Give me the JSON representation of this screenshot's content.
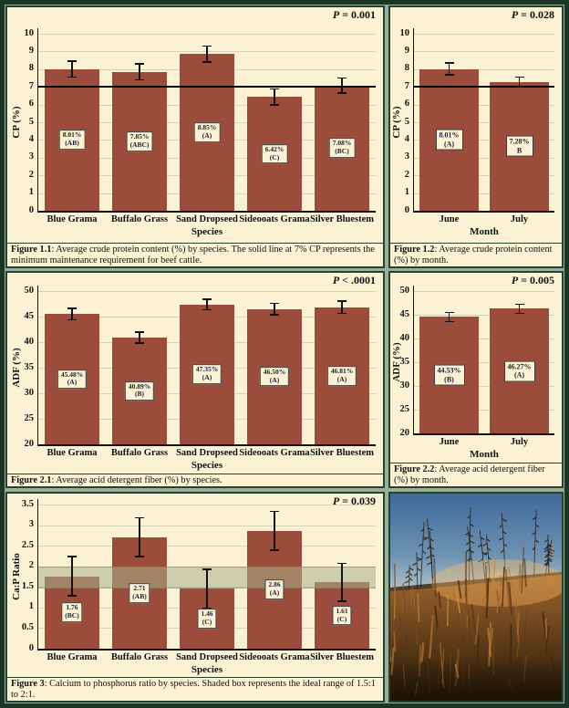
{
  "colors": {
    "frame": "#1B3526",
    "gap_background": "#9BAE98",
    "panel_border": "#26432F",
    "panel_background": "#FBF2D3",
    "bar": "#9B4C3B",
    "grid": "#D8D0BA",
    "axis": "#111111",
    "value_text": "#1C1C38",
    "ideal_band": "rgba(168,176,138,0.55)"
  },
  "chart_data": [
    {
      "id": "fig-1-1",
      "type": "bar",
      "p_italic": "P",
      "p_rest": " = 0.001",
      "ylabel": "CP (%)",
      "xlabel": "Species",
      "ylim": [
        0,
        10
      ],
      "ystep": 1,
      "categories": [
        "Blue Grama",
        "Buffalo Grass",
        "Sand Dropseed",
        "Sideooats Grama",
        "Silver Bluestem"
      ],
      "values": [
        8.01,
        7.85,
        8.85,
        6.42,
        7.08
      ],
      "errors": [
        0.45,
        0.45,
        0.45,
        0.45,
        0.42
      ],
      "bar_labels": [
        [
          "8.01%",
          "(AB)"
        ],
        [
          "7.85%",
          "(ABC)"
        ],
        [
          "8.85%",
          "(A)"
        ],
        [
          "6.42%",
          "(C)"
        ],
        [
          "7.08%",
          "(BC)"
        ]
      ],
      "ref_line": 7,
      "caption_label": "Figure 1.1",
      "caption_text": ": Average crude protein content (%) by species. The solid line at 7% CP represents the minimum maintenance requirement for beef cattle."
    },
    {
      "id": "fig-1-2",
      "type": "bar",
      "p_italic": "P",
      "p_rest": " = 0.028",
      "ylabel": "CP (%)",
      "xlabel": "Month",
      "ylim": [
        0,
        10
      ],
      "ystep": 1,
      "categories": [
        "June",
        "July"
      ],
      "values": [
        8.01,
        7.28
      ],
      "errors": [
        0.33,
        0.28
      ],
      "bar_labels": [
        [
          "8.01%",
          "(A)"
        ],
        [
          "7.28%",
          "B"
        ]
      ],
      "ref_line": 7,
      "caption_label": "Figure 1.2",
      "caption_text": ": Average crude protein content (%) by month."
    },
    {
      "id": "fig-2-1",
      "type": "bar",
      "p_italic": "P",
      "p_rest": " < .0001",
      "ylabel": "ADF (%)",
      "xlabel": "Species",
      "ylim": [
        20,
        50
      ],
      "ystep": 5,
      "categories": [
        "Blue Grama",
        "Buffalo Grass",
        "Sand Dropseed",
        "Sideooats Grama",
        "Silver Bluestem"
      ],
      "values": [
        45.48,
        40.89,
        47.35,
        46.5,
        46.81
      ],
      "errors": [
        1.1,
        1.1,
        1.05,
        1.1,
        1.2
      ],
      "bar_labels": [
        [
          "45.48%",
          "(A)"
        ],
        [
          "40.89%",
          "(B)"
        ],
        [
          "47.35%",
          "(A)"
        ],
        [
          "46.50%",
          "(A)"
        ],
        [
          "46.81%",
          "(A)"
        ]
      ],
      "caption_label": "Figure 2.1",
      "caption_text": ": Average acid detergent fiber (%) by species."
    },
    {
      "id": "fig-2-2",
      "type": "bar",
      "p_italic": "P",
      "p_rest": " = 0.005",
      "ylabel": "ADF (%)",
      "xlabel": "Month",
      "ylim": [
        20,
        50
      ],
      "ystep": 5,
      "categories": [
        "June",
        "July"
      ],
      "values": [
        44.53,
        46.27
      ],
      "errors": [
        0.95,
        0.95
      ],
      "bar_labels": [
        [
          "44.53%",
          "(B)"
        ],
        [
          "46.27%",
          "(A)"
        ]
      ],
      "caption_label": "Figure 2.2",
      "caption_text": ": Average acid detergent fiber (%) by month."
    },
    {
      "id": "fig-3",
      "type": "bar",
      "p_italic": "P",
      "p_rest": " = 0.039",
      "ylabel": "Ca:P Ratio",
      "xlabel": "Species",
      "ylim": [
        0,
        3.5
      ],
      "ystep": 0.5,
      "categories": [
        "Blue Grama",
        "Buffalo Grass",
        "Sand Dropseed",
        "Sideooats Grama",
        "Silver Bluestem"
      ],
      "values": [
        1.76,
        2.71,
        1.46,
        2.86,
        1.61
      ],
      "errors": [
        0.48,
        0.47,
        0.47,
        0.47,
        0.46
      ],
      "bar_labels": [
        [
          "1.76",
          "(BC)"
        ],
        [
          "2.71",
          "(AB)"
        ],
        [
          "1.46",
          "(C)"
        ],
        [
          "2.86",
          "(A)"
        ],
        [
          "1.61",
          "(C)"
        ]
      ],
      "band": [
        1.5,
        2.0
      ],
      "caption_label": "Figure 3",
      "caption_text": ": Calcium to phosphorus ratio by species. Shaded box represents the ideal range of 1.5:1 to 2:1."
    }
  ],
  "photo": {
    "alt": "Prairie grass seed heads backlit by a setting sun under a clear sky",
    "sky_top": "#3E699B",
    "horizon_glow": "#E8A75B",
    "field_dark": "#4F3314"
  }
}
